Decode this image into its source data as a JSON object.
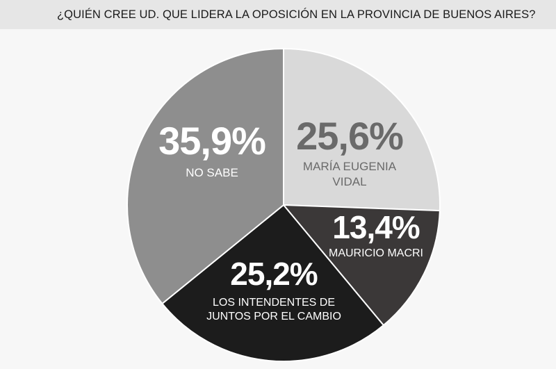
{
  "header": {
    "title": "¿QUIÉN CREE UD. QUE LIDERA LA OPOSICIÓN EN LA PROVINCIA DE BUENOS AIRES?"
  },
  "colors": {
    "background": "#f7f7f7",
    "header_band": "#e6e6e6",
    "vidal": "#d9d9d9",
    "macri": "#3b3838",
    "intendentes": "#1c1c1c",
    "no_sabe": "#8e8e8e",
    "label_dark": "#6a6a6a",
    "label_light": "#ffffff",
    "separator": "#ffffff"
  },
  "chart_data": {
    "type": "pie",
    "title": "¿QUIÉN CREE UD. QUE LIDERA LA OPOSICIÓN EN LA PROVINCIA DE BUENOS AIRES?",
    "start_angle_deg": 0,
    "direction": "clockwise",
    "slices": [
      {
        "key": "vidal",
        "value": 25.6,
        "value_label": "25,6%",
        "name_lines": [
          "MARÍA EUGENIA",
          "VIDAL"
        ],
        "color": "#d9d9d9",
        "text_color": "#6a6a6a"
      },
      {
        "key": "macri",
        "value": 13.4,
        "value_label": "13,4%",
        "name_lines": [
          "MAURICIO MACRI"
        ],
        "color": "#3b3838",
        "text_color": "#ffffff"
      },
      {
        "key": "intendentes",
        "value": 25.2,
        "value_label": "25,2%",
        "name_lines": [
          "LOS INTENDENTES DE",
          "JUNTOS POR EL CAMBIO"
        ],
        "color": "#1c1c1c",
        "text_color": "#ffffff"
      },
      {
        "key": "no_sabe",
        "value": 35.9,
        "value_label": "35,9%",
        "name_lines": [
          "NO SABE"
        ],
        "color": "#8e8e8e",
        "text_color": "#ffffff"
      }
    ]
  }
}
